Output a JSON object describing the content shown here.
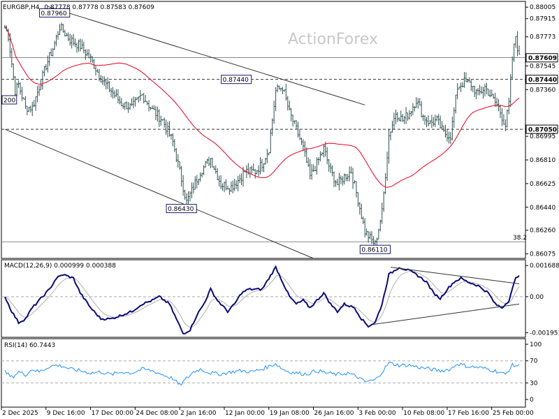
{
  "header": {
    "symbol": "EURGBP,H4",
    "ohlc": "0.87778 0.87778 0.87583 0.87609"
  },
  "watermark": "ActionForex",
  "chart_data": {
    "type": "bar",
    "symbol": "EURGBP",
    "timeframe": "H4",
    "price_axis": {
      "ylim": [
        0.8604,
        0.8805
      ],
      "ticks": [
        "0.88005",
        "0.87915",
        "0.87773",
        "0.87545",
        "0.87360",
        "0.86995",
        "0.86810",
        "0.86625",
        "0.86440",
        "0.86260",
        "0.86075"
      ]
    },
    "price_tags": [
      {
        "value": "0.87609",
        "price": 0.87609
      },
      {
        "value": "0.87440",
        "price": 0.8744
      },
      {
        "value": "0.87050",
        "price": 0.8705
      }
    ],
    "time_axis": {
      "ticks": [
        "2 Dec 2025",
        "9 Dec 16:00",
        "17 Dec 00:00",
        "24 Dec 08:00",
        "2 Jan 16:00",
        "12 Jan 00:00",
        "19 Jan 08:00",
        "26 Jan 16:00",
        "3 Feb 00:00",
        "10 Feb 08:00",
        "17 Feb 16:00",
        "25 Feb 00:00"
      ]
    },
    "anchors": [
      [
        0,
        0.8785
      ],
      [
        2,
        0.8778
      ],
      [
        6,
        0.8735
      ],
      [
        8,
        0.874
      ],
      [
        12,
        0.8722
      ],
      [
        16,
        0.8722
      ],
      [
        20,
        0.8738
      ],
      [
        24,
        0.8755
      ],
      [
        28,
        0.8768
      ],
      [
        32,
        0.8785
      ],
      [
        38,
        0.8775
      ],
      [
        44,
        0.877
      ],
      [
        50,
        0.876
      ],
      [
        56,
        0.8745
      ],
      [
        62,
        0.8735
      ],
      [
        68,
        0.8725
      ],
      [
        74,
        0.8722
      ],
      [
        80,
        0.8732
      ],
      [
        86,
        0.872
      ],
      [
        92,
        0.8712
      ],
      [
        98,
        0.8695
      ],
      [
        102,
        0.8672
      ],
      [
        106,
        0.8648
      ],
      [
        110,
        0.866
      ],
      [
        114,
        0.8672
      ],
      [
        120,
        0.8682
      ],
      [
        126,
        0.8662
      ],
      [
        132,
        0.866
      ],
      [
        136,
        0.8665
      ],
      [
        140,
        0.8672
      ],
      [
        146,
        0.8672
      ],
      [
        150,
        0.8678
      ],
      [
        154,
        0.869
      ],
      [
        158,
        0.8735
      ],
      [
        162,
        0.8738
      ],
      [
        166,
        0.8718
      ],
      [
        170,
        0.8705
      ],
      [
        174,
        0.869
      ],
      [
        178,
        0.8668
      ],
      [
        182,
        0.8678
      ],
      [
        186,
        0.869
      ],
      [
        190,
        0.8672
      ],
      [
        194,
        0.8662
      ],
      [
        198,
        0.8668
      ],
      [
        202,
        0.8672
      ],
      [
        206,
        0.865
      ],
      [
        210,
        0.8625
      ],
      [
        214,
        0.8618
      ],
      [
        216,
        0.8615
      ],
      [
        220,
        0.864
      ],
      [
        224,
        0.87
      ],
      [
        228,
        0.8718
      ],
      [
        232,
        0.8712
      ],
      [
        236,
        0.8718
      ],
      [
        240,
        0.8728
      ],
      [
        244,
        0.8715
      ],
      [
        248,
        0.871
      ],
      [
        252,
        0.8712
      ],
      [
        256,
        0.8702
      ],
      [
        260,
        0.87
      ],
      [
        264,
        0.8738
      ],
      [
        268,
        0.8742
      ],
      [
        272,
        0.874
      ],
      [
        276,
        0.8732
      ],
      [
        280,
        0.8738
      ],
      [
        284,
        0.873
      ],
      [
        288,
        0.8722
      ],
      [
        290,
        0.8715
      ],
      [
        292,
        0.8708
      ],
      [
        294,
        0.8725
      ],
      [
        296,
        0.876
      ],
      [
        298,
        0.8778
      ],
      [
        300,
        0.8761
      ]
    ],
    "sma": {
      "period": 50,
      "color": "#e8001c"
    },
    "annotations": [
      {
        "text": "0.87960",
        "bar": 29,
        "price": 0.8796
      },
      {
        "text": "0.87440",
        "bar": 135,
        "price": 0.8744
      },
      {
        "text": "0.86430",
        "bar": 103,
        "price": 0.8643
      },
      {
        "text": "0.86110",
        "bar": 216,
        "price": 0.8611
      },
      {
        "text": "200",
        "bar": 0,
        "price": 0.8728
      },
      {
        "text": "38.2",
        "bar": 300,
        "price": 0.8617
      }
    ],
    "levels": [
      {
        "price": 0.8761,
        "style": "solid"
      },
      {
        "price": 0.8744,
        "style": "dashed"
      },
      {
        "price": 0.8705,
        "style": "dashed"
      },
      {
        "price": 0.8617,
        "style": "solid"
      }
    ],
    "trendlines": [
      {
        "from": [
          25,
          0.8801
        ],
        "to": [
          210,
          0.8724
        ]
      },
      {
        "from": [
          0,
          0.8705
        ],
        "to": [
          180,
          0.8604
        ]
      }
    ],
    "macd": {
      "label": "MACD(12,26,9) 0.000999 0.000388",
      "ticks": [
        "0.001688",
        "0.00",
        "-0.001953"
      ],
      "ylim": [
        -0.0022,
        0.002
      ],
      "anchors": [
        [
          0,
          0.0
        ],
        [
          4,
          -0.0008
        ],
        [
          8,
          -0.0014
        ],
        [
          12,
          -0.0012
        ],
        [
          16,
          -0.0006
        ],
        [
          20,
          -0.0002
        ],
        [
          26,
          0.0004
        ],
        [
          30,
          0.001
        ],
        [
          34,
          0.0012
        ],
        [
          40,
          0.001
        ],
        [
          44,
          0.0002
        ],
        [
          50,
          -0.0006
        ],
        [
          56,
          -0.0012
        ],
        [
          62,
          -0.0012
        ],
        [
          68,
          -0.001
        ],
        [
          74,
          -0.0008
        ],
        [
          80,
          -0.0004
        ],
        [
          86,
          -0.0002
        ],
        [
          90,
          0.0
        ],
        [
          96,
          -0.0004
        ],
        [
          100,
          -0.0012
        ],
        [
          104,
          -0.002
        ],
        [
          108,
          -0.0018
        ],
        [
          112,
          -0.001
        ],
        [
          116,
          -0.0004
        ],
        [
          120,
          0.0004
        ],
        [
          124,
          -0.0002
        ],
        [
          130,
          -0.0008
        ],
        [
          134,
          -0.0004
        ],
        [
          138,
          0.0002
        ],
        [
          142,
          0.0004
        ],
        [
          146,
          0.0004
        ],
        [
          150,
          0.0004
        ],
        [
          154,
          0.001
        ],
        [
          158,
          0.0016
        ],
        [
          162,
          0.0008
        ],
        [
          166,
          0.0
        ],
        [
          170,
          -0.0004
        ],
        [
          174,
          -0.0002
        ],
        [
          178,
          -0.0006
        ],
        [
          182,
          -0.0002
        ],
        [
          186,
          0.0002
        ],
        [
          190,
          -0.0004
        ],
        [
          194,
          -0.0008
        ],
        [
          198,
          -0.0004
        ],
        [
          204,
          -0.0006
        ],
        [
          208,
          -0.0012
        ],
        [
          212,
          -0.0016
        ],
        [
          216,
          -0.0014
        ],
        [
          220,
          -0.0004
        ],
        [
          224,
          0.0012
        ],
        [
          230,
          0.0016
        ],
        [
          236,
          0.0014
        ],
        [
          240,
          0.0012
        ],
        [
          246,
          0.0008
        ],
        [
          250,
          0.0002
        ],
        [
          254,
          -0.0001
        ],
        [
          258,
          0.0004
        ],
        [
          262,
          0.0008
        ],
        [
          266,
          0.001
        ],
        [
          270,
          0.0008
        ],
        [
          276,
          0.0006
        ],
        [
          282,
          0.0002
        ],
        [
          286,
          -0.0004
        ],
        [
          290,
          -0.0006
        ],
        [
          294,
          -0.0002
        ],
        [
          298,
          0.001
        ],
        [
          300,
          0.0012
        ]
      ],
      "signal_period": 9,
      "trendlines": [
        {
          "from": [
            225,
            0.0016
          ],
          "to": [
            300,
            0.0007
          ]
        },
        {
          "from": [
            215,
            -0.0015
          ],
          "to": [
            300,
            -0.0004
          ]
        }
      ]
    },
    "rsi": {
      "label": "RSI(14) 60.7443",
      "ticks": [
        "100",
        "70",
        "30",
        "0"
      ],
      "ylim": [
        0,
        100
      ],
      "levels": [
        70,
        30
      ],
      "anchors": [
        [
          0,
          50
        ],
        [
          4,
          40
        ],
        [
          8,
          50
        ],
        [
          12,
          45
        ],
        [
          16,
          55
        ],
        [
          20,
          50
        ],
        [
          26,
          60
        ],
        [
          30,
          62
        ],
        [
          34,
          60
        ],
        [
          38,
          55
        ],
        [
          44,
          52
        ],
        [
          50,
          48
        ],
        [
          56,
          50
        ],
        [
          62,
          45
        ],
        [
          68,
          50
        ],
        [
          74,
          48
        ],
        [
          80,
          55
        ],
        [
          86,
          52
        ],
        [
          92,
          45
        ],
        [
          98,
          38
        ],
        [
          102,
          25
        ],
        [
          106,
          38
        ],
        [
          110,
          50
        ],
        [
          114,
          55
        ],
        [
          120,
          48
        ],
        [
          126,
          46
        ],
        [
          132,
          50
        ],
        [
          138,
          52
        ],
        [
          144,
          50
        ],
        [
          150,
          55
        ],
        [
          154,
          60
        ],
        [
          158,
          65
        ],
        [
          162,
          55
        ],
        [
          166,
          50
        ],
        [
          170,
          48
        ],
        [
          176,
          46
        ],
        [
          182,
          52
        ],
        [
          188,
          48
        ],
        [
          194,
          45
        ],
        [
          200,
          48
        ],
        [
          206,
          40
        ],
        [
          210,
          32
        ],
        [
          216,
          35
        ],
        [
          220,
          50
        ],
        [
          224,
          66
        ],
        [
          230,
          62
        ],
        [
          236,
          62
        ],
        [
          242,
          58
        ],
        [
          248,
          55
        ],
        [
          254,
          52
        ],
        [
          260,
          55
        ],
        [
          264,
          65
        ],
        [
          270,
          60
        ],
        [
          276,
          58
        ],
        [
          282,
          55
        ],
        [
          288,
          50
        ],
        [
          292,
          45
        ],
        [
          296,
          62
        ],
        [
          300,
          61
        ]
      ]
    }
  }
}
